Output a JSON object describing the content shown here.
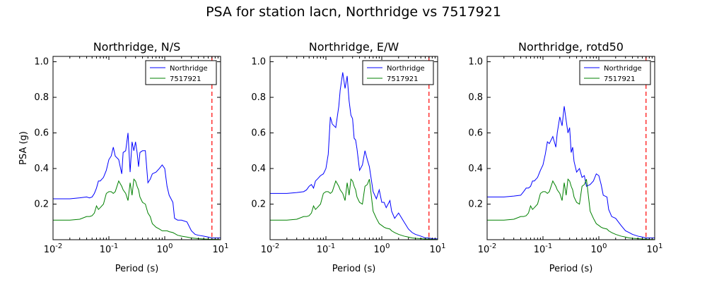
{
  "figure": {
    "title": "PSA for station lacn, Northridge vs 7517921"
  },
  "chart_data": [
    {
      "type": "line",
      "title": "Northridge, N/S",
      "xlabel": "Period (s)",
      "ylabel": "PSA (g)",
      "xscale": "log",
      "xlim": [
        0.01,
        10
      ],
      "ylim": [
        0.0,
        1.03
      ],
      "xticks": [
        0.01,
        0.1,
        1,
        10
      ],
      "xtick_labels": [
        "10^-2",
        "10^-1",
        "10^0",
        "10^1"
      ],
      "yticks": [
        0.2,
        0.4,
        0.6,
        0.8,
        1.0
      ],
      "ytick_labels": [
        "0.2",
        "0.4",
        "0.6",
        "0.8",
        "1.0"
      ],
      "legend": "top-right",
      "vline": {
        "x": 7.0,
        "color": "#ff0000",
        "style": "dashed"
      },
      "series": [
        {
          "name": "Northridge",
          "color": "#0000ff",
          "x": [
            0.01,
            0.02,
            0.03,
            0.04,
            0.045,
            0.05,
            0.055,
            0.06,
            0.065,
            0.07,
            0.08,
            0.09,
            0.1,
            0.11,
            0.12,
            0.13,
            0.15,
            0.17,
            0.18,
            0.2,
            0.22,
            0.24,
            0.26,
            0.28,
            0.3,
            0.32,
            0.34,
            0.36,
            0.4,
            0.45,
            0.5,
            0.55,
            0.6,
            0.7,
            0.8,
            0.9,
            1.0,
            1.1,
            1.2,
            1.4,
            1.5,
            1.7,
            2.0,
            2.5,
            3.0,
            3.5,
            4.0,
            5.0,
            6.0,
            7.0,
            8.0,
            10.0
          ],
          "y": [
            0.23,
            0.23,
            0.235,
            0.24,
            0.235,
            0.24,
            0.26,
            0.29,
            0.33,
            0.33,
            0.35,
            0.39,
            0.45,
            0.47,
            0.52,
            0.47,
            0.45,
            0.37,
            0.49,
            0.5,
            0.6,
            0.38,
            0.55,
            0.5,
            0.55,
            0.49,
            0.41,
            0.49,
            0.5,
            0.5,
            0.32,
            0.34,
            0.37,
            0.38,
            0.4,
            0.42,
            0.4,
            0.3,
            0.25,
            0.21,
            0.12,
            0.11,
            0.11,
            0.1,
            0.05,
            0.03,
            0.025,
            0.02,
            0.015,
            0.01,
            0.01,
            0.01
          ]
        },
        {
          "name": "7517921",
          "color": "#008000",
          "x": [
            0.01,
            0.02,
            0.03,
            0.04,
            0.045,
            0.05,
            0.055,
            0.06,
            0.065,
            0.07,
            0.08,
            0.09,
            0.1,
            0.11,
            0.12,
            0.13,
            0.15,
            0.17,
            0.18,
            0.2,
            0.22,
            0.24,
            0.26,
            0.28,
            0.3,
            0.32,
            0.34,
            0.36,
            0.4,
            0.45,
            0.5,
            0.55,
            0.6,
            0.7,
            0.8,
            0.9,
            1.0,
            1.1,
            1.2,
            1.4,
            1.5,
            1.7,
            2.0,
            2.5,
            3.0,
            3.5,
            4.0,
            5.0,
            6.0,
            7.0,
            8.0,
            10.0
          ],
          "y": [
            0.11,
            0.11,
            0.115,
            0.13,
            0.13,
            0.135,
            0.15,
            0.19,
            0.17,
            0.18,
            0.2,
            0.26,
            0.27,
            0.27,
            0.26,
            0.27,
            0.33,
            0.3,
            0.28,
            0.26,
            0.22,
            0.32,
            0.25,
            0.34,
            0.33,
            0.3,
            0.28,
            0.24,
            0.21,
            0.2,
            0.15,
            0.13,
            0.09,
            0.07,
            0.06,
            0.05,
            0.05,
            0.05,
            0.045,
            0.04,
            0.035,
            0.025,
            0.02,
            0.015,
            0.01,
            0.008,
            0.006,
            0.004,
            0.003,
            0.002,
            0.002,
            0.001
          ]
        }
      ]
    },
    {
      "type": "line",
      "title": "Northridge, E/W",
      "xlabel": "Period (s)",
      "ylabel": "",
      "xscale": "log",
      "xlim": [
        0.01,
        10
      ],
      "ylim": [
        0.0,
        1.03
      ],
      "xticks": [
        0.01,
        0.1,
        1,
        10
      ],
      "xtick_labels": [
        "10^-2",
        "10^-1",
        "10^0",
        "10^1"
      ],
      "yticks": [
        0.2,
        0.4,
        0.6,
        0.8,
        1.0
      ],
      "ytick_labels": [
        "0.2",
        "0.4",
        "0.6",
        "0.8",
        "1.0"
      ],
      "legend": "top-right",
      "vline": {
        "x": 7.0,
        "color": "#ff0000",
        "style": "dashed"
      },
      "series": [
        {
          "name": "Northridge",
          "color": "#0000ff",
          "x": [
            0.01,
            0.02,
            0.03,
            0.04,
            0.045,
            0.05,
            0.055,
            0.06,
            0.065,
            0.07,
            0.08,
            0.09,
            0.1,
            0.11,
            0.12,
            0.13,
            0.15,
            0.17,
            0.18,
            0.2,
            0.22,
            0.24,
            0.26,
            0.28,
            0.3,
            0.32,
            0.34,
            0.36,
            0.4,
            0.45,
            0.5,
            0.55,
            0.6,
            0.7,
            0.8,
            0.9,
            1.0,
            1.1,
            1.2,
            1.4,
            1.5,
            1.7,
            2.0,
            2.5,
            3.0,
            3.5,
            4.0,
            5.0,
            6.0,
            7.0,
            8.0,
            10.0
          ],
          "y": [
            0.26,
            0.26,
            0.265,
            0.27,
            0.28,
            0.3,
            0.31,
            0.29,
            0.33,
            0.34,
            0.36,
            0.37,
            0.4,
            0.48,
            0.69,
            0.65,
            0.63,
            0.75,
            0.84,
            0.94,
            0.85,
            0.92,
            0.78,
            0.7,
            0.68,
            0.57,
            0.56,
            0.51,
            0.39,
            0.42,
            0.5,
            0.45,
            0.41,
            0.27,
            0.23,
            0.28,
            0.21,
            0.21,
            0.18,
            0.22,
            0.16,
            0.12,
            0.15,
            0.1,
            0.06,
            0.04,
            0.03,
            0.02,
            0.01,
            0.01,
            0.005,
            0.005
          ]
        },
        {
          "name": "7517921",
          "color": "#008000",
          "x": [
            0.01,
            0.02,
            0.03,
            0.04,
            0.045,
            0.05,
            0.055,
            0.06,
            0.065,
            0.07,
            0.08,
            0.09,
            0.1,
            0.11,
            0.12,
            0.13,
            0.15,
            0.17,
            0.18,
            0.2,
            0.22,
            0.24,
            0.26,
            0.28,
            0.3,
            0.32,
            0.34,
            0.36,
            0.4,
            0.45,
            0.5,
            0.55,
            0.6,
            0.7,
            0.8,
            0.9,
            1.0,
            1.1,
            1.2,
            1.4,
            1.5,
            1.7,
            2.0,
            2.5,
            3.0,
            3.5,
            4.0,
            5.0,
            6.0,
            7.0,
            8.0,
            10.0
          ],
          "y": [
            0.11,
            0.11,
            0.115,
            0.13,
            0.13,
            0.135,
            0.15,
            0.19,
            0.17,
            0.18,
            0.2,
            0.26,
            0.27,
            0.27,
            0.26,
            0.27,
            0.33,
            0.3,
            0.28,
            0.26,
            0.22,
            0.32,
            0.25,
            0.34,
            0.33,
            0.3,
            0.28,
            0.24,
            0.21,
            0.2,
            0.3,
            0.31,
            0.34,
            0.16,
            0.12,
            0.09,
            0.08,
            0.07,
            0.065,
            0.06,
            0.05,
            0.04,
            0.03,
            0.02,
            0.015,
            0.01,
            0.008,
            0.006,
            0.004,
            0.003,
            0.002,
            0.001
          ]
        }
      ]
    },
    {
      "type": "line",
      "title": "Northridge, rotd50",
      "xlabel": "Period (s)",
      "ylabel": "",
      "xscale": "log",
      "xlim": [
        0.01,
        10
      ],
      "ylim": [
        0.0,
        1.03
      ],
      "xticks": [
        0.01,
        0.1,
        1,
        10
      ],
      "xtick_labels": [
        "10^-2",
        "10^-1",
        "10^0",
        "10^1"
      ],
      "yticks": [
        0.2,
        0.4,
        0.6,
        0.8,
        1.0
      ],
      "ytick_labels": [
        "0.2",
        "0.4",
        "0.6",
        "0.8",
        "1.0"
      ],
      "legend": "top-right",
      "vline": {
        "x": 7.0,
        "color": "#ff0000",
        "style": "dashed"
      },
      "series": [
        {
          "name": "Northridge",
          "color": "#0000ff",
          "x": [
            0.01,
            0.02,
            0.03,
            0.04,
            0.045,
            0.05,
            0.055,
            0.06,
            0.065,
            0.07,
            0.08,
            0.09,
            0.1,
            0.11,
            0.12,
            0.13,
            0.15,
            0.17,
            0.18,
            0.2,
            0.22,
            0.24,
            0.26,
            0.28,
            0.3,
            0.32,
            0.34,
            0.36,
            0.4,
            0.45,
            0.5,
            0.55,
            0.6,
            0.7,
            0.8,
            0.9,
            1.0,
            1.1,
            1.2,
            1.4,
            1.5,
            1.7,
            2.0,
            2.5,
            3.0,
            3.5,
            4.0,
            5.0,
            6.0,
            7.0,
            8.0,
            10.0
          ],
          "y": [
            0.24,
            0.24,
            0.245,
            0.25,
            0.27,
            0.29,
            0.29,
            0.3,
            0.33,
            0.33,
            0.35,
            0.39,
            0.42,
            0.48,
            0.55,
            0.54,
            0.58,
            0.52,
            0.6,
            0.69,
            0.64,
            0.75,
            0.67,
            0.6,
            0.63,
            0.49,
            0.52,
            0.44,
            0.38,
            0.4,
            0.35,
            0.36,
            0.3,
            0.31,
            0.33,
            0.37,
            0.36,
            0.31,
            0.25,
            0.24,
            0.17,
            0.13,
            0.12,
            0.08,
            0.05,
            0.04,
            0.03,
            0.02,
            0.015,
            0.01,
            0.01,
            0.01
          ]
        },
        {
          "name": "7517921",
          "color": "#008000",
          "x": [
            0.01,
            0.02,
            0.03,
            0.04,
            0.045,
            0.05,
            0.055,
            0.06,
            0.065,
            0.07,
            0.08,
            0.09,
            0.1,
            0.11,
            0.12,
            0.13,
            0.15,
            0.17,
            0.18,
            0.2,
            0.22,
            0.24,
            0.26,
            0.28,
            0.3,
            0.32,
            0.34,
            0.36,
            0.4,
            0.45,
            0.5,
            0.55,
            0.6,
            0.7,
            0.8,
            0.9,
            1.0,
            1.1,
            1.2,
            1.4,
            1.5,
            1.7,
            2.0,
            2.5,
            3.0,
            3.5,
            4.0,
            5.0,
            6.0,
            7.0,
            8.0,
            10.0
          ],
          "y": [
            0.11,
            0.11,
            0.115,
            0.13,
            0.13,
            0.135,
            0.15,
            0.19,
            0.17,
            0.18,
            0.2,
            0.26,
            0.27,
            0.27,
            0.26,
            0.27,
            0.33,
            0.3,
            0.28,
            0.26,
            0.22,
            0.32,
            0.25,
            0.34,
            0.33,
            0.3,
            0.28,
            0.24,
            0.21,
            0.2,
            0.3,
            0.31,
            0.34,
            0.16,
            0.12,
            0.09,
            0.08,
            0.07,
            0.065,
            0.06,
            0.05,
            0.04,
            0.03,
            0.02,
            0.015,
            0.01,
            0.008,
            0.006,
            0.004,
            0.003,
            0.002,
            0.001
          ]
        }
      ]
    }
  ]
}
